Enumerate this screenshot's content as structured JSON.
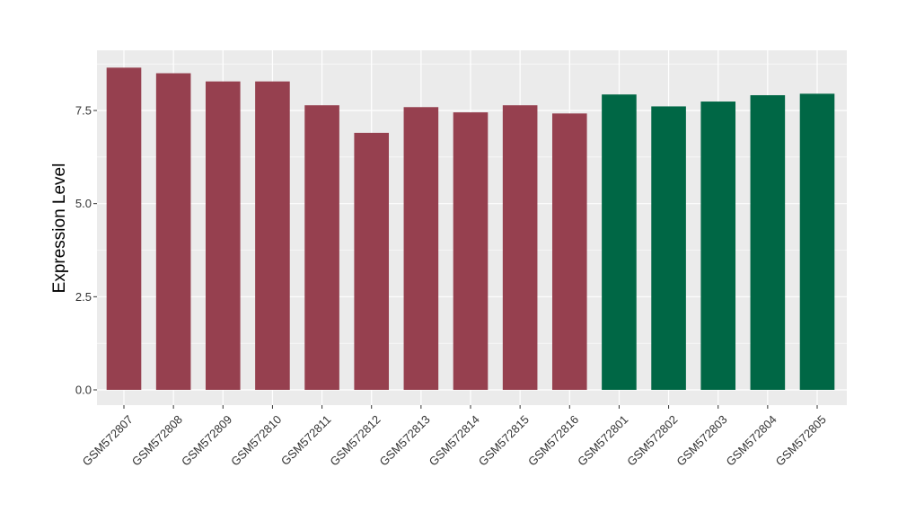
{
  "chart_data": {
    "type": "bar",
    "title": "",
    "xlabel": "",
    "ylabel": "Expression Level",
    "ylim": [
      0,
      8.95
    ],
    "yticks": [
      0.0,
      2.5,
      5.0,
      7.5
    ],
    "ytick_labels": [
      "0.0",
      "2.5",
      "5.0",
      "7.5"
    ],
    "grid": true,
    "legend": "none",
    "categories": [
      "GSM572807",
      "GSM572808",
      "GSM572809",
      "GSM572810",
      "GSM572811",
      "GSM572812",
      "GSM572813",
      "GSM572814",
      "GSM572815",
      "GSM572816",
      "GSM572801",
      "GSM572802",
      "GSM572803",
      "GSM572804",
      "GSM572805"
    ],
    "values": [
      8.65,
      8.5,
      8.28,
      8.28,
      7.64,
      6.9,
      7.59,
      7.45,
      7.64,
      7.42,
      7.93,
      7.61,
      7.74,
      7.91,
      7.95
    ],
    "group_colors": [
      "#96404F",
      "#96404F",
      "#96404F",
      "#96404F",
      "#96404F",
      "#96404F",
      "#96404F",
      "#96404F",
      "#96404F",
      "#96404F",
      "#006745",
      "#006745",
      "#006745",
      "#006745",
      "#006745"
    ],
    "panel_background": "#EBEBEB",
    "grid_color": "#FFFFFF"
  }
}
